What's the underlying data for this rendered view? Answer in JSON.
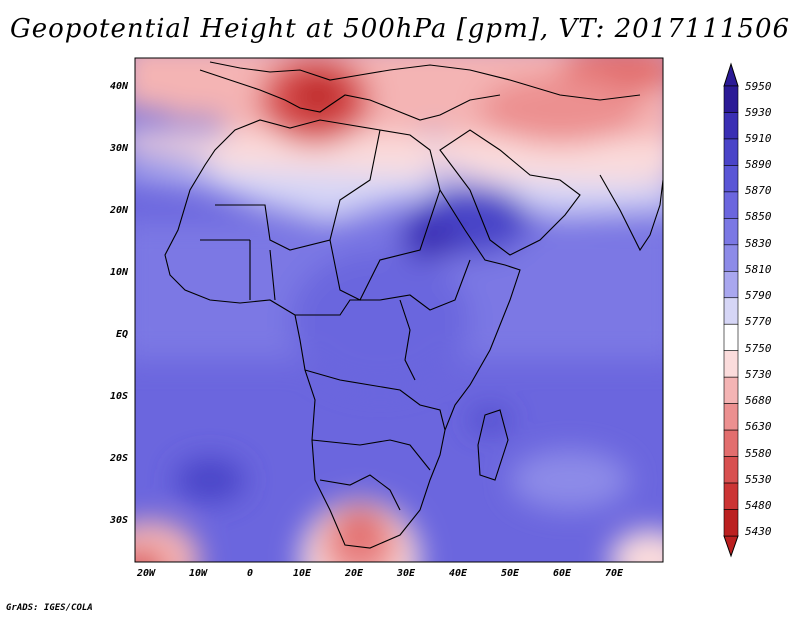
{
  "title": "Geopotential Height at 500hPa [gpm], VT: 2017111506",
  "credit": "GrADS: IGES/COLA",
  "lat_labels": [
    "40N",
    "30N",
    "20N",
    "10N",
    "EQ",
    "10S",
    "20S",
    "30S"
  ],
  "lon_labels": [
    "20W",
    "10W",
    "0",
    "10E",
    "20E",
    "30E",
    "40E",
    "50E",
    "60E",
    "70E"
  ],
  "colorbar": {
    "labels": [
      "5950",
      "5930",
      "5910",
      "5890",
      "5870",
      "5850",
      "5830",
      "5810",
      "5790",
      "5770",
      "5750",
      "5730",
      "5680",
      "5630",
      "5580",
      "5530",
      "5480",
      "5430"
    ],
    "colors": [
      "#2b1a96",
      "#3a2fb4",
      "#4a44c8",
      "#5a56d6",
      "#6b66de",
      "#7b78e4",
      "#8d8be8",
      "#a9a7ef",
      "#d6d6f6",
      "#ffffff",
      "#fbdcdc",
      "#f4b4b4",
      "#ec9090",
      "#e26e6e",
      "#d85050",
      "#cc3434",
      "#bb2020"
    ]
  },
  "map": {
    "projection": "lat-lon",
    "lon_range": [
      -22,
      80
    ],
    "lat_range": [
      -37,
      45
    ]
  }
}
